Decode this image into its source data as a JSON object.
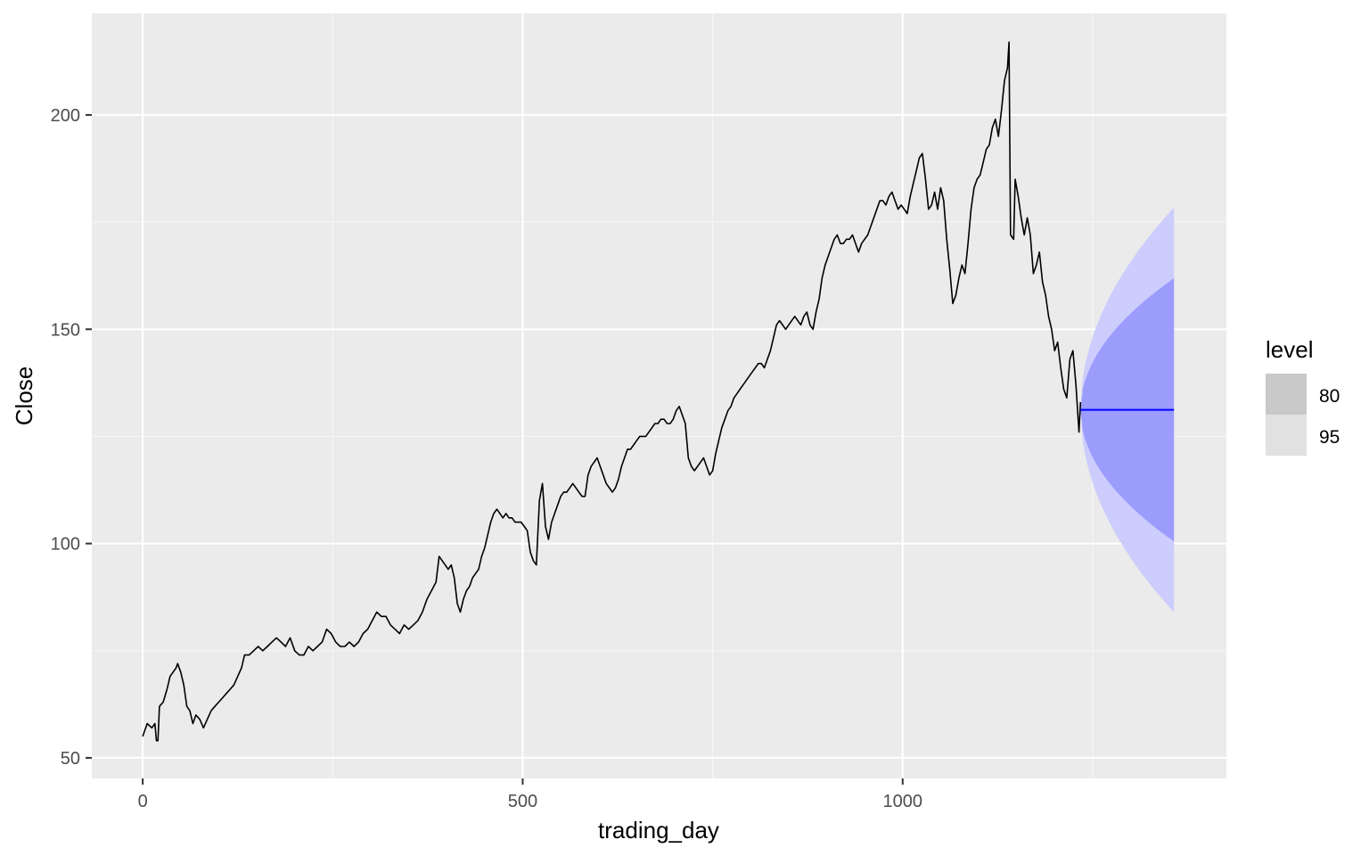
{
  "chart_data": {
    "type": "line",
    "xlabel": "trading_day",
    "ylabel": "Close",
    "xlim": [
      -67,
      1426
    ],
    "ylim": [
      45.2,
      223.7
    ],
    "x_ticks": [
      0,
      500,
      1000
    ],
    "x_minor_ticks": [
      250,
      750,
      1250
    ],
    "y_ticks": [
      50,
      100,
      150,
      200
    ],
    "y_minor_ticks": [
      75,
      125,
      175
    ],
    "grid": true,
    "legend": {
      "title": "level",
      "position": "right",
      "items": [
        {
          "label": "80",
          "color": "#c9c9c9"
        },
        {
          "label": "95",
          "color": "#e1e1e1"
        }
      ]
    },
    "series": [
      {
        "role": "observed",
        "color": "#000000",
        "points": [
          [
            0,
            55
          ],
          [
            6,
            58
          ],
          [
            12,
            57
          ],
          [
            16,
            58
          ],
          [
            18,
            54
          ],
          [
            20,
            54
          ],
          [
            22,
            62
          ],
          [
            27,
            63
          ],
          [
            32,
            66
          ],
          [
            36,
            69
          ],
          [
            40,
            70
          ],
          [
            44,
            71
          ],
          [
            46,
            72
          ],
          [
            50,
            70
          ],
          [
            54,
            67
          ],
          [
            58,
            62
          ],
          [
            62,
            61
          ],
          [
            66,
            58
          ],
          [
            70,
            60
          ],
          [
            75,
            59
          ],
          [
            80,
            57
          ],
          [
            85,
            59
          ],
          [
            90,
            61
          ],
          [
            95,
            62
          ],
          [
            100,
            63
          ],
          [
            105,
            64
          ],
          [
            110,
            65
          ],
          [
            115,
            66
          ],
          [
            120,
            67
          ],
          [
            125,
            69
          ],
          [
            130,
            71
          ],
          [
            134,
            74
          ],
          [
            140,
            74
          ],
          [
            146,
            75
          ],
          [
            152,
            76
          ],
          [
            158,
            75
          ],
          [
            164,
            76
          ],
          [
            170,
            77
          ],
          [
            176,
            78
          ],
          [
            182,
            77
          ],
          [
            188,
            76
          ],
          [
            194,
            78
          ],
          [
            200,
            75
          ],
          [
            206,
            74
          ],
          [
            212,
            74
          ],
          [
            218,
            76
          ],
          [
            224,
            75
          ],
          [
            230,
            76
          ],
          [
            236,
            77
          ],
          [
            242,
            80
          ],
          [
            248,
            79
          ],
          [
            254,
            77
          ],
          [
            260,
            76
          ],
          [
            266,
            76
          ],
          [
            272,
            77
          ],
          [
            278,
            76
          ],
          [
            284,
            77
          ],
          [
            290,
            79
          ],
          [
            296,
            80
          ],
          [
            302,
            82
          ],
          [
            308,
            84
          ],
          [
            314,
            83
          ],
          [
            320,
            83
          ],
          [
            326,
            81
          ],
          [
            332,
            80
          ],
          [
            338,
            79
          ],
          [
            344,
            81
          ],
          [
            350,
            80
          ],
          [
            356,
            81
          ],
          [
            362,
            82
          ],
          [
            368,
            84
          ],
          [
            374,
            87
          ],
          [
            380,
            89
          ],
          [
            386,
            91
          ],
          [
            390,
            97
          ],
          [
            394,
            96
          ],
          [
            398,
            95
          ],
          [
            402,
            94
          ],
          [
            406,
            95
          ],
          [
            410,
            92
          ],
          [
            414,
            86
          ],
          [
            418,
            84
          ],
          [
            422,
            87
          ],
          [
            426,
            89
          ],
          [
            430,
            90
          ],
          [
            434,
            92
          ],
          [
            438,
            93
          ],
          [
            442,
            94
          ],
          [
            446,
            97
          ],
          [
            450,
            99
          ],
          [
            454,
            102
          ],
          [
            458,
            105
          ],
          [
            462,
            107
          ],
          [
            466,
            108
          ],
          [
            470,
            107
          ],
          [
            474,
            106
          ],
          [
            478,
            107
          ],
          [
            482,
            106
          ],
          [
            486,
            106
          ],
          [
            490,
            105
          ],
          [
            494,
            105
          ],
          [
            498,
            105
          ],
          [
            502,
            104
          ],
          [
            506,
            103
          ],
          [
            510,
            98
          ],
          [
            514,
            96
          ],
          [
            518,
            95
          ],
          [
            522,
            110
          ],
          [
            526,
            114
          ],
          [
            530,
            104
          ],
          [
            534,
            101
          ],
          [
            538,
            105
          ],
          [
            542,
            107
          ],
          [
            546,
            109
          ],
          [
            550,
            111
          ],
          [
            554,
            112
          ],
          [
            558,
            112
          ],
          [
            562,
            113
          ],
          [
            566,
            114
          ],
          [
            570,
            113
          ],
          [
            574,
            112
          ],
          [
            578,
            111
          ],
          [
            582,
            111
          ],
          [
            586,
            116
          ],
          [
            590,
            118
          ],
          [
            594,
            119
          ],
          [
            598,
            120
          ],
          [
            602,
            118
          ],
          [
            606,
            116
          ],
          [
            610,
            114
          ],
          [
            614,
            113
          ],
          [
            618,
            112
          ],
          [
            622,
            113
          ],
          [
            626,
            115
          ],
          [
            630,
            118
          ],
          [
            634,
            120
          ],
          [
            638,
            122
          ],
          [
            642,
            122
          ],
          [
            646,
            123
          ],
          [
            650,
            124
          ],
          [
            654,
            125
          ],
          [
            658,
            125
          ],
          [
            662,
            125
          ],
          [
            666,
            126
          ],
          [
            670,
            127
          ],
          [
            674,
            128
          ],
          [
            678,
            128
          ],
          [
            682,
            129
          ],
          [
            686,
            129
          ],
          [
            690,
            128
          ],
          [
            694,
            128
          ],
          [
            698,
            129
          ],
          [
            702,
            131
          ],
          [
            706,
            132
          ],
          [
            710,
            130
          ],
          [
            714,
            128
          ],
          [
            718,
            120
          ],
          [
            722,
            118
          ],
          [
            726,
            117
          ],
          [
            730,
            118
          ],
          [
            734,
            119
          ],
          [
            738,
            120
          ],
          [
            742,
            118
          ],
          [
            746,
            116
          ],
          [
            750,
            117
          ],
          [
            754,
            121
          ],
          [
            758,
            124
          ],
          [
            762,
            127
          ],
          [
            766,
            129
          ],
          [
            770,
            131
          ],
          [
            774,
            132
          ],
          [
            778,
            134
          ],
          [
            782,
            135
          ],
          [
            786,
            136
          ],
          [
            790,
            137
          ],
          [
            794,
            138
          ],
          [
            798,
            139
          ],
          [
            802,
            140
          ],
          [
            806,
            141
          ],
          [
            810,
            142
          ],
          [
            814,
            142
          ],
          [
            818,
            141
          ],
          [
            822,
            143
          ],
          [
            826,
            145
          ],
          [
            830,
            148
          ],
          [
            834,
            151
          ],
          [
            838,
            152
          ],
          [
            842,
            151
          ],
          [
            846,
            150
          ],
          [
            850,
            151
          ],
          [
            854,
            152
          ],
          [
            858,
            153
          ],
          [
            862,
            152
          ],
          [
            866,
            151
          ],
          [
            870,
            153
          ],
          [
            874,
            154
          ],
          [
            878,
            151
          ],
          [
            882,
            150
          ],
          [
            886,
            154
          ],
          [
            890,
            157
          ],
          [
            894,
            162
          ],
          [
            898,
            165
          ],
          [
            902,
            167
          ],
          [
            906,
            169
          ],
          [
            910,
            171
          ],
          [
            914,
            172
          ],
          [
            918,
            170
          ],
          [
            922,
            170
          ],
          [
            926,
            171
          ],
          [
            930,
            171
          ],
          [
            934,
            172
          ],
          [
            938,
            170
          ],
          [
            942,
            168
          ],
          [
            946,
            170
          ],
          [
            950,
            171
          ],
          [
            954,
            172
          ],
          [
            958,
            174
          ],
          [
            962,
            176
          ],
          [
            966,
            178
          ],
          [
            970,
            180
          ],
          [
            974,
            180
          ],
          [
            978,
            179
          ],
          [
            982,
            181
          ],
          [
            986,
            182
          ],
          [
            990,
            180
          ],
          [
            994,
            178
          ],
          [
            998,
            179
          ],
          [
            1002,
            178
          ],
          [
            1006,
            177
          ],
          [
            1010,
            181
          ],
          [
            1014,
            184
          ],
          [
            1018,
            187
          ],
          [
            1022,
            190
          ],
          [
            1026,
            191
          ],
          [
            1030,
            185
          ],
          [
            1034,
            178
          ],
          [
            1038,
            179
          ],
          [
            1042,
            182
          ],
          [
            1046,
            178
          ],
          [
            1050,
            183
          ],
          [
            1054,
            180
          ],
          [
            1058,
            171
          ],
          [
            1062,
            164
          ],
          [
            1066,
            156
          ],
          [
            1070,
            158
          ],
          [
            1074,
            162
          ],
          [
            1078,
            165
          ],
          [
            1082,
            163
          ],
          [
            1086,
            170
          ],
          [
            1090,
            178
          ],
          [
            1094,
            183
          ],
          [
            1098,
            185
          ],
          [
            1102,
            186
          ],
          [
            1106,
            189
          ],
          [
            1110,
            192
          ],
          [
            1114,
            193
          ],
          [
            1118,
            197
          ],
          [
            1122,
            199
          ],
          [
            1126,
            195
          ],
          [
            1130,
            201
          ],
          [
            1134,
            208
          ],
          [
            1138,
            211
          ],
          [
            1140,
            217
          ],
          [
            1142,
            172
          ],
          [
            1146,
            171
          ],
          [
            1148,
            185
          ],
          [
            1152,
            181
          ],
          [
            1156,
            176
          ],
          [
            1160,
            172
          ],
          [
            1164,
            176
          ],
          [
            1168,
            172
          ],
          [
            1172,
            163
          ],
          [
            1176,
            165
          ],
          [
            1180,
            168
          ],
          [
            1184,
            161
          ],
          [
            1188,
            158
          ],
          [
            1192,
            153
          ],
          [
            1196,
            150
          ],
          [
            1200,
            145
          ],
          [
            1204,
            147
          ],
          [
            1208,
            141
          ],
          [
            1212,
            136
          ],
          [
            1216,
            134
          ],
          [
            1220,
            143
          ],
          [
            1224,
            145
          ],
          [
            1228,
            137
          ],
          [
            1232,
            126
          ],
          [
            1234,
            133
          ]
        ]
      },
      {
        "role": "forecast",
        "color": "#0000ff",
        "x_start": 1234,
        "x_end": 1357,
        "value": 131.2
      }
    ],
    "forecast_intervals": [
      {
        "level": "95",
        "color": "#cccdfc",
        "x_start": 1234,
        "x_end": 1357,
        "center": 131.2,
        "half_width_end": 47.2
      },
      {
        "level": "80",
        "color": "#9c9cfc",
        "x_start": 1234,
        "x_end": 1357,
        "center": 131.2,
        "half_width_end": 30.7
      }
    ]
  }
}
